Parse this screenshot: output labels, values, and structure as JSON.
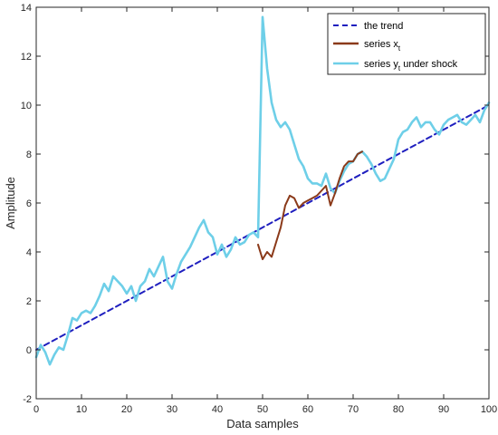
{
  "chart_data": {
    "type": "line",
    "title": "",
    "xlabel": "Data samples",
    "ylabel": "Amplitude",
    "xlim": [
      0,
      100
    ],
    "ylim": [
      -2,
      14
    ],
    "xticks": [
      0,
      10,
      20,
      30,
      40,
      50,
      60,
      70,
      80,
      90,
      100
    ],
    "yticks": [
      -2,
      0,
      2,
      4,
      6,
      8,
      10,
      12,
      14
    ],
    "grid": false,
    "legend_position": "top-right",
    "legend": [
      {
        "label": "the trend",
        "subscript": ""
      },
      {
        "label": "series x",
        "subscript": "t"
      },
      {
        "label": "series y",
        "subscript": "t",
        "suffix": " under shock"
      }
    ],
    "series": [
      {
        "name": "the trend",
        "color": "#1f1fbf",
        "style": "dashed",
        "x": [
          0,
          100
        ],
        "y": [
          0,
          10
        ]
      },
      {
        "name": "series x_t",
        "color": "#8b3a1a",
        "style": "solid",
        "x": [
          49,
          50,
          51,
          52,
          53,
          54,
          55,
          56,
          57,
          58,
          59,
          60,
          61,
          62,
          63,
          64,
          65,
          66,
          67,
          68,
          69,
          70,
          71,
          72
        ],
        "y": [
          4.3,
          3.7,
          4.0,
          3.8,
          4.4,
          5.0,
          5.9,
          6.3,
          6.2,
          5.8,
          6.0,
          6.1,
          6.2,
          6.3,
          6.5,
          6.7,
          5.9,
          6.4,
          7.0,
          7.5,
          7.7,
          7.7,
          8.0,
          8.1
        ]
      },
      {
        "name": "series y_t under shock",
        "color": "#6ecfe8",
        "style": "solid",
        "x": [
          0,
          1,
          2,
          3,
          4,
          5,
          6,
          7,
          8,
          9,
          10,
          11,
          12,
          13,
          14,
          15,
          16,
          17,
          18,
          19,
          20,
          21,
          22,
          23,
          24,
          25,
          26,
          27,
          28,
          29,
          30,
          31,
          32,
          33,
          34,
          35,
          36,
          37,
          38,
          39,
          40,
          41,
          42,
          43,
          44,
          45,
          46,
          47,
          48,
          49,
          50,
          51,
          52,
          53,
          54,
          55,
          56,
          57,
          58,
          59,
          60,
          61,
          62,
          63,
          64,
          65,
          66,
          67,
          68,
          69,
          70,
          71,
          72,
          73,
          74,
          75,
          76,
          77,
          78,
          79,
          80,
          81,
          82,
          83,
          84,
          85,
          86,
          87,
          88,
          89,
          90,
          91,
          92,
          93,
          94,
          95,
          96,
          97,
          98,
          99,
          100
        ],
        "y": [
          -0.3,
          0.2,
          -0.1,
          -0.6,
          -0.2,
          0.1,
          0.0,
          0.6,
          1.3,
          1.2,
          1.5,
          1.6,
          1.5,
          1.8,
          2.2,
          2.7,
          2.4,
          3.0,
          2.8,
          2.6,
          2.3,
          2.6,
          2.0,
          2.6,
          2.8,
          3.3,
          3.0,
          3.4,
          3.8,
          2.8,
          2.5,
          3.1,
          3.6,
          3.9,
          4.2,
          4.6,
          5.0,
          5.3,
          4.8,
          4.6,
          3.9,
          4.3,
          3.8,
          4.1,
          4.6,
          4.3,
          4.4,
          4.7,
          4.8,
          4.6,
          13.6,
          11.5,
          10.1,
          9.4,
          9.1,
          9.3,
          9.0,
          8.4,
          7.8,
          7.5,
          7.0,
          6.8,
          6.8,
          6.7,
          7.2,
          6.6,
          6.4,
          6.9,
          7.3,
          7.6,
          7.7,
          8.0,
          8.1,
          7.9,
          7.6,
          7.2,
          6.9,
          7.0,
          7.4,
          7.8,
          8.6,
          8.9,
          9.0,
          9.3,
          9.5,
          9.1,
          9.3,
          9.3,
          9.0,
          8.8,
          9.2,
          9.4,
          9.5,
          9.6,
          9.3,
          9.2,
          9.4,
          9.6,
          9.3,
          9.8,
          10.1
        ]
      }
    ]
  }
}
